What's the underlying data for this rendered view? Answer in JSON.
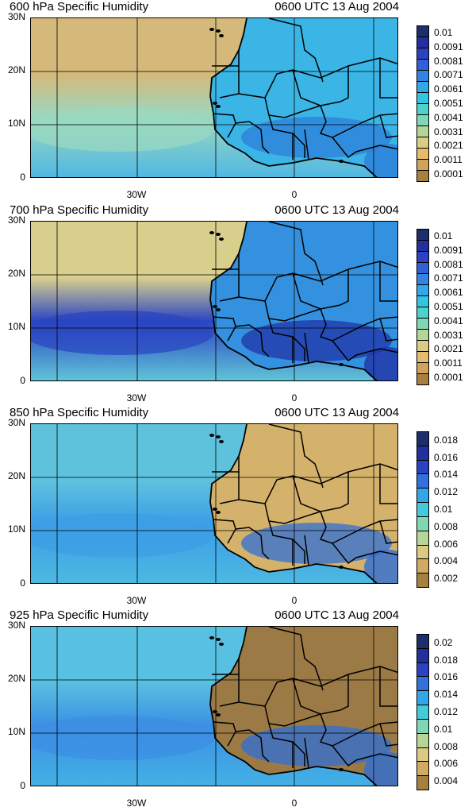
{
  "panels": [
    {
      "title_left": "600 hPa Specific Humidity",
      "title_right": "0600 UTC 13 Aug 2004",
      "lat_labels": [
        "30N",
        "20N",
        "10N",
        "0"
      ],
      "lon_labels": [
        "30W",
        "0"
      ],
      "colorbar": {
        "labels": [
          "0.01",
          "0.0091",
          "0.0081",
          "0.0071",
          "0.0061",
          "0.0051",
          "0.0041",
          "0.0031",
          "0.0021",
          "0.0011",
          "0.0001"
        ],
        "colors": [
          "#1c2f6a",
          "#232f9c",
          "#2b42c4",
          "#2f60d8",
          "#3482e2",
          "#32a8e8",
          "#33c6e3",
          "#4dd3cc",
          "#7fd7b5",
          "#b3d698",
          "#d9cc83",
          "#e6bb6b",
          "#cfa35a",
          "#a77f3f"
        ]
      },
      "field": {
        "ocean_north": "#d4b97a",
        "ocean_mid": "#9ad8c0",
        "ocean_south": "#4fb7e3",
        "land": "#3ab5e6",
        "land_wet": "#2d7fd8"
      }
    },
    {
      "title_left": "700 hPa Specific Humidity",
      "title_right": "0600 UTC 13 Aug 2004",
      "lat_labels": [
        "30N",
        "20N",
        "10N",
        "0"
      ],
      "lon_labels": [
        "30W",
        "0"
      ],
      "colorbar": {
        "labels": [
          "0.01",
          "0.0091",
          "0.0081",
          "0.0071",
          "0.0061",
          "0.0051",
          "0.0041",
          "0.0031",
          "0.0021",
          "0.0011",
          "0.0001"
        ],
        "colors": [
          "#1c2f6a",
          "#232f9c",
          "#2b42c4",
          "#2f60d8",
          "#3482e2",
          "#32a8e8",
          "#33c6e3",
          "#4dd3cc",
          "#7fd7b5",
          "#b3d698",
          "#d9cc83",
          "#e6bb6b",
          "#cfa35a",
          "#a77f3f"
        ]
      },
      "field": {
        "ocean_north": "#d8cf8d",
        "ocean_mid": "#2a45c2",
        "ocean_south": "#62c7d8",
        "land": "#3391df",
        "land_wet": "#2235a8"
      }
    },
    {
      "title_left": "850 hPa Specific Humidity",
      "title_right": "0600 UTC 13 Aug 2004",
      "lat_labels": [
        "30N",
        "20N",
        "10N",
        "0"
      ],
      "lon_labels": [
        "30W",
        "0"
      ],
      "colorbar": {
        "labels": [
          "0.018",
          "0.016",
          "0.014",
          "0.012",
          "0.01",
          "0.008",
          "0.006",
          "0.004",
          "0.002"
        ],
        "colors": [
          "#1c2f6a",
          "#232f9c",
          "#2b42c4",
          "#3270dc",
          "#33a6e8",
          "#43cbd9",
          "#7fd7b5",
          "#b8d598",
          "#ddc980",
          "#d2aa62",
          "#a77f3f"
        ]
      },
      "field": {
        "ocean_north": "#5fc2dd",
        "ocean_mid": "#3c9ee6",
        "ocean_south": "#4cb9e2",
        "land": "#d5b26c",
        "land_wet": "#2f6fd6"
      }
    },
    {
      "title_left": "925 hPa Specific Humidity",
      "title_right": "0600 UTC 13 Aug 2004",
      "lat_labels": [
        "30N",
        "20N",
        "10N",
        "0"
      ],
      "lon_labels": [
        "30W",
        "0"
      ],
      "colorbar": {
        "labels": [
          "0.02",
          "0.018",
          "0.016",
          "0.014",
          "0.012",
          "0.01",
          "0.008",
          "0.006",
          "0.004"
        ],
        "colors": [
          "#1c2f6a",
          "#232f9c",
          "#2b42c4",
          "#3270dc",
          "#33a6e8",
          "#43cbd9",
          "#7fd7b5",
          "#b8d598",
          "#ddc980",
          "#d2aa62",
          "#a77f3f"
        ]
      },
      "field": {
        "ocean_north": "#58c0e0",
        "ocean_mid": "#3c8fe4",
        "ocean_south": "#43b2e5",
        "land": "#9c7a45",
        "land_wet": "#2f6fd6"
      }
    }
  ]
}
